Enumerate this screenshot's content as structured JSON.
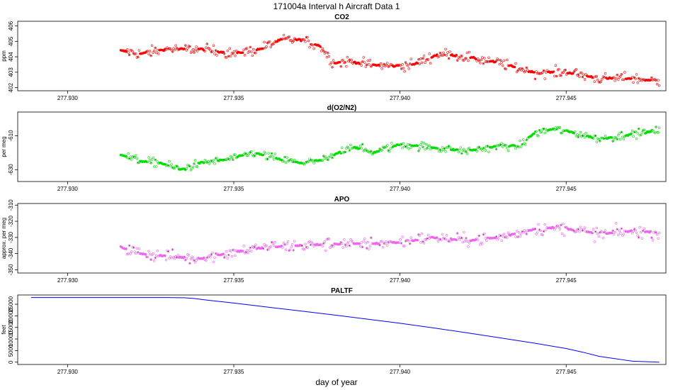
{
  "main_title": "171004a   Interval h Aircraft Data 1",
  "xlabel": "day of year",
  "xlim": [
    277.9285,
    277.948
  ],
  "x_ticks": [
    277.93,
    277.935,
    277.94,
    277.945
  ],
  "x_tick_labels": [
    "277.930",
    "277.935",
    "277.940",
    "277.945"
  ],
  "chart_data": [
    {
      "type": "scatter",
      "title": "CO2",
      "ylabel": "ppm",
      "color": "#ff0000",
      "ylim": [
        401.8,
        406.3
      ],
      "y_ticks": [
        402,
        403,
        404,
        405,
        406
      ],
      "y_tick_labels": [
        "402",
        "403",
        "404",
        "405",
        "406"
      ],
      "x_range": [
        277.9316,
        277.9478
      ],
      "trend": [
        [
          277.9316,
          404.4
        ],
        [
          277.9322,
          404.2
        ],
        [
          277.933,
          404.5
        ],
        [
          277.934,
          404.5
        ],
        [
          277.935,
          404.2
        ],
        [
          277.9358,
          404.5
        ],
        [
          277.9364,
          405.1
        ],
        [
          277.937,
          405.1
        ],
        [
          277.9376,
          404.7
        ],
        [
          277.938,
          403.6
        ],
        [
          277.9385,
          403.7
        ],
        [
          277.939,
          403.5
        ],
        [
          277.9398,
          403.4
        ],
        [
          277.9404,
          403.5
        ],
        [
          277.9412,
          404.2
        ],
        [
          277.942,
          404.0
        ],
        [
          277.943,
          403.6
        ],
        [
          277.944,
          403.0
        ],
        [
          277.945,
          403.0
        ],
        [
          277.946,
          402.6
        ],
        [
          277.947,
          402.6
        ],
        [
          277.9478,
          402.4
        ]
      ],
      "noise": 0.35,
      "cluster_noise": 0.05,
      "n_points": 500
    },
    {
      "type": "scatter",
      "title": "d(O2/N2)",
      "ylabel": "per meg",
      "color": "#00dd00",
      "ylim": [
        -637,
        -596
      ],
      "y_ticks": [
        -630,
        -610
      ],
      "y_tick_labels": [
        "-630",
        "-610"
      ],
      "x_range": [
        277.9316,
        277.9478
      ],
      "trend": [
        [
          277.9316,
          -621
        ],
        [
          277.9322,
          -625
        ],
        [
          277.9328,
          -626
        ],
        [
          277.9334,
          -630
        ],
        [
          277.934,
          -626
        ],
        [
          277.9348,
          -624
        ],
        [
          277.9356,
          -620
        ],
        [
          277.9364,
          -624
        ],
        [
          277.937,
          -626
        ],
        [
          277.9378,
          -624
        ],
        [
          277.9385,
          -616
        ],
        [
          277.9392,
          -620
        ],
        [
          277.94,
          -615
        ],
        [
          277.941,
          -617
        ],
        [
          277.942,
          -619
        ],
        [
          277.943,
          -616
        ],
        [
          277.9436,
          -616
        ],
        [
          277.944,
          -609
        ],
        [
          277.9446,
          -606
        ],
        [
          277.9452,
          -608
        ],
        [
          277.946,
          -612
        ],
        [
          277.947,
          -609
        ],
        [
          277.9478,
          -607
        ]
      ],
      "noise": 2.5,
      "cluster_noise": 0.4,
      "n_points": 500
    },
    {
      "type": "scatter",
      "title": "APO",
      "ylabel": "approx. per meg",
      "color": "#ee66ee",
      "ylim": [
        -352,
        -309
      ],
      "y_ticks": [
        -350,
        -340,
        -330,
        -320,
        -310
      ],
      "y_tick_labels": [
        "-350",
        "-340",
        "-330",
        "-320",
        "-310"
      ],
      "x_range": [
        277.9316,
        277.9478
      ],
      "trend": [
        [
          277.9316,
          -336
        ],
        [
          277.9322,
          -340
        ],
        [
          277.9332,
          -342
        ],
        [
          277.934,
          -343
        ],
        [
          277.935,
          -339
        ],
        [
          277.936,
          -336
        ],
        [
          277.937,
          -335
        ],
        [
          277.938,
          -334
        ],
        [
          277.939,
          -334
        ],
        [
          277.94,
          -333
        ],
        [
          277.941,
          -330
        ],
        [
          277.942,
          -332
        ],
        [
          277.943,
          -330
        ],
        [
          277.944,
          -325
        ],
        [
          277.9446,
          -324
        ],
        [
          277.9452,
          -325
        ],
        [
          277.946,
          -328
        ],
        [
          277.947,
          -326
        ],
        [
          277.9478,
          -327
        ]
      ],
      "noise": 4.0,
      "cluster_noise": 0.4,
      "n_points": 500
    },
    {
      "type": "line",
      "title": "PALTF",
      "ylabel": "feet",
      "color": "#0000ff",
      "ylim": [
        -1000,
        29000
      ],
      "y_ticks": [
        0,
        5000,
        10000,
        15000,
        20000,
        25000
      ],
      "y_tick_labels": [
        "0",
        "5000",
        "10000",
        "15000",
        "20000",
        "25000"
      ],
      "x": [
        277.9289,
        277.93,
        277.931,
        277.932,
        277.933,
        277.9335,
        277.9338,
        277.9342,
        277.935,
        277.936,
        277.937,
        277.938,
        277.939,
        277.94,
        277.941,
        277.942,
        277.943,
        277.944,
        277.945,
        277.9455,
        277.946,
        277.947,
        277.9478
      ],
      "y": [
        27900,
        27900,
        27900,
        27900,
        27900,
        27800,
        27500,
        26800,
        25500,
        23800,
        22100,
        20400,
        18600,
        16800,
        14800,
        12700,
        10500,
        8300,
        5900,
        4300,
        2500,
        400,
        0
      ]
    }
  ]
}
